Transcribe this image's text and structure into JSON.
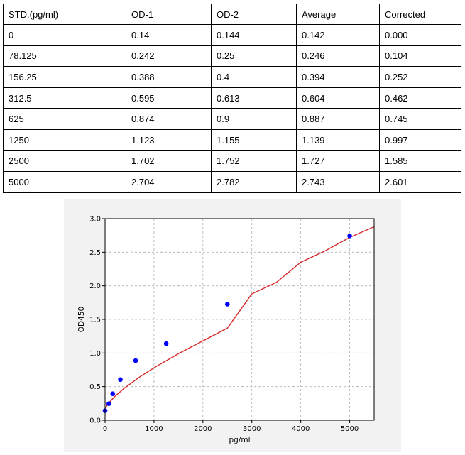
{
  "table": {
    "headers": [
      "STD.(pg/ml)",
      "OD-1",
      "OD-2",
      "Average",
      "Corrected"
    ],
    "rows": [
      [
        "0",
        "0.14",
        "0.144",
        "0.142",
        "0.000"
      ],
      [
        "78.125",
        "0.242",
        "0.25",
        "0.246",
        "0.104"
      ],
      [
        "156.25",
        "0.388",
        "0.4",
        "0.394",
        "0.252"
      ],
      [
        "312.5",
        "0.595",
        "0.613",
        "0.604",
        "0.462"
      ],
      [
        "625",
        "0.874",
        "0.9",
        "0.887",
        "0.745"
      ],
      [
        "1250",
        "1.123",
        "1.155",
        "1.139",
        "0.997"
      ],
      [
        "2500",
        "1.702",
        "1.752",
        "1.727",
        "1.585"
      ],
      [
        "5000",
        "2.704",
        "2.782",
        "2.743",
        "2.601"
      ]
    ]
  },
  "chart_data": {
    "type": "scatter",
    "xlabel": "pg/ml",
    "ylabel": "OD450",
    "xlim": [
      0,
      5500
    ],
    "ylim": [
      0,
      3.0
    ],
    "xticks": [
      0,
      1000,
      2000,
      3000,
      4000,
      5000
    ],
    "yticks": [
      0.0,
      0.5,
      1.0,
      1.5,
      2.0,
      2.5,
      3.0
    ],
    "xtick_labels": [
      "0",
      "1000",
      "2000",
      "3000",
      "4000",
      "5000"
    ],
    "ytick_labels": [
      "0.0",
      "0.5",
      "1.0",
      "1.5",
      "2.0",
      "2.5",
      "3.0"
    ],
    "grid": true,
    "points": {
      "x": [
        0,
        78.125,
        156.25,
        312.5,
        625,
        1250,
        2500,
        5000
      ],
      "y": [
        0.142,
        0.246,
        0.394,
        0.604,
        0.887,
        1.139,
        1.727,
        2.743
      ]
    },
    "fit_curve": {
      "x": [
        0,
        100,
        200,
        400,
        700,
        1000,
        1500,
        2000,
        2500,
        3000,
        3500,
        4000,
        4500,
        5000,
        5500
      ],
      "y": [
        0.18,
        0.275,
        0.355,
        0.48,
        0.64,
        0.78,
        0.99,
        1.18,
        1.37,
        1.88,
        2.05,
        2.35,
        2.52,
        2.72,
        2.88
      ]
    },
    "colors": {
      "points": "#0000ff",
      "curve": "#d62728",
      "grid": "#b0b0b0",
      "panel": "#f2f2f2"
    }
  }
}
